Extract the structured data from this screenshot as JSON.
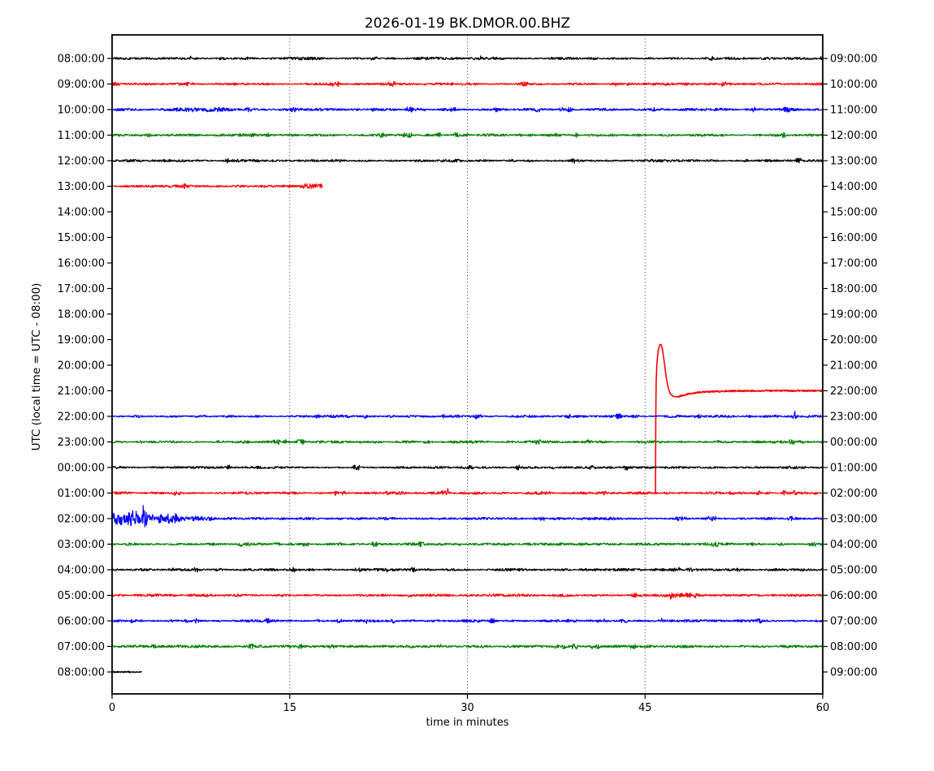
{
  "chart_data": {
    "type": "line",
    "subtype": "helicorder-dayplot",
    "title": "2026-01-19 BK.DMOR.00.BHZ",
    "xlabel": "time in minutes",
    "ylabel": "UTC (local time = UTC - 08:00)",
    "x_range": [
      0,
      60
    ],
    "x_ticks": [
      0,
      15,
      30,
      45,
      60
    ],
    "gridline_minutes": [
      15,
      30,
      45
    ],
    "minutes_per_line": 60,
    "grid": "vertical-dotted",
    "colors": {
      "black": "#000000",
      "red": "#ff0000",
      "blue": "#0000ff",
      "green": "#008000",
      "frame": "#000000",
      "gridline": "#555555"
    },
    "rows": [
      {
        "utc_left": "08:00:00",
        "local_right": "09:00:00",
        "color": "black",
        "segments": [
          {
            "start": 0,
            "end": 60
          }
        ]
      },
      {
        "utc_left": "09:00:00",
        "local_right": "10:00:00",
        "color": "red",
        "segments": [
          {
            "start": 0,
            "end": 60
          }
        ]
      },
      {
        "utc_left": "10:00:00",
        "local_right": "11:00:00",
        "color": "blue",
        "segments": [
          {
            "start": 0,
            "end": 60,
            "bursts": [
              {
                "start": 5,
                "end": 10,
                "amp": 0.9
              }
            ]
          }
        ]
      },
      {
        "utc_left": "11:00:00",
        "local_right": "12:00:00",
        "color": "green",
        "segments": [
          {
            "start": 0,
            "end": 60
          }
        ]
      },
      {
        "utc_left": "12:00:00",
        "local_right": "13:00:00",
        "color": "black",
        "segments": [
          {
            "start": 0,
            "end": 60
          }
        ]
      },
      {
        "utc_left": "13:00:00",
        "local_right": "14:00:00",
        "color": "red",
        "segments": [
          {
            "start": 0,
            "end": 17.8,
            "bursts": [
              {
                "start": 16.2,
                "end": 17.7,
                "amp": 1.4
              }
            ]
          }
        ]
      },
      {
        "utc_left": "14:00:00",
        "local_right": "15:00:00",
        "color": "blue",
        "segments": []
      },
      {
        "utc_left": "15:00:00",
        "local_right": "16:00:00",
        "color": "green",
        "segments": []
      },
      {
        "utc_left": "16:00:00",
        "local_right": "17:00:00",
        "color": "black",
        "segments": []
      },
      {
        "utc_left": "17:00:00",
        "local_right": "18:00:00",
        "color": "red",
        "segments": []
      },
      {
        "utc_left": "18:00:00",
        "local_right": "19:00:00",
        "color": "blue",
        "segments": []
      },
      {
        "utc_left": "19:00:00",
        "local_right": "20:00:00",
        "color": "green",
        "segments": []
      },
      {
        "utc_left": "20:00:00",
        "local_right": "21:00:00",
        "color": "black",
        "segments": []
      },
      {
        "utc_left": "21:00:00",
        "local_right": "22:00:00",
        "color": "red",
        "segments": [],
        "transient": {
          "description": "trace resumes ~45.9 min with large step transient: first sample ~4 lines low, peak ~+1.8 lines, undershoot, settles to baseline by ~51 min",
          "start_min": 45.88,
          "end_min": 60,
          "points_min_amplines": [
            [
              45.88,
              -4.0
            ],
            [
              45.9,
              -1.2
            ],
            [
              45.93,
              0.35
            ],
            [
              46.0,
              1.05
            ],
            [
              46.1,
              1.55
            ],
            [
              46.22,
              1.78
            ],
            [
              46.35,
              1.82
            ],
            [
              46.48,
              1.6
            ],
            [
              46.62,
              1.12
            ],
            [
              46.78,
              0.55
            ],
            [
              46.95,
              0.12
            ],
            [
              47.12,
              -0.12
            ],
            [
              47.35,
              -0.21
            ],
            [
              47.65,
              -0.24
            ],
            [
              47.95,
              -0.21
            ],
            [
              48.35,
              -0.16
            ],
            [
              48.9,
              -0.1
            ],
            [
              49.6,
              -0.06
            ],
            [
              50.5,
              -0.03
            ],
            [
              52.0,
              -0.012
            ],
            [
              54.0,
              0.0
            ],
            [
              60.0,
              0.0
            ]
          ]
        }
      },
      {
        "utc_left": "22:00:00",
        "local_right": "23:00:00",
        "color": "blue",
        "segments": [
          {
            "start": 0,
            "end": 60
          }
        ]
      },
      {
        "utc_left": "23:00:00",
        "local_right": "00:00:00",
        "color": "green",
        "segments": [
          {
            "start": 0,
            "end": 60
          }
        ]
      },
      {
        "utc_left": "00:00:00",
        "local_right": "01:00:00",
        "color": "black",
        "segments": [
          {
            "start": 0,
            "end": 60
          }
        ]
      },
      {
        "utc_left": "01:00:00",
        "local_right": "02:00:00",
        "color": "red",
        "segments": [
          {
            "start": 0,
            "end": 60
          }
        ]
      },
      {
        "utc_left": "02:00:00",
        "local_right": "03:00:00",
        "color": "blue",
        "segments": [
          {
            "start": 0,
            "end": 60,
            "bursts": [
              {
                "start": 0,
                "end": 2.8,
                "amp": 6.5
              },
              {
                "start": 2.8,
                "end": 5.5,
                "amp": 3.6
              },
              {
                "start": 5.5,
                "end": 8.5,
                "amp": 1.6
              }
            ]
          }
        ]
      },
      {
        "utc_left": "03:00:00",
        "local_right": "04:00:00",
        "color": "green",
        "segments": [
          {
            "start": 0,
            "end": 60
          }
        ]
      },
      {
        "utc_left": "04:00:00",
        "local_right": "05:00:00",
        "color": "black",
        "segments": [
          {
            "start": 0,
            "end": 60
          }
        ]
      },
      {
        "utc_left": "05:00:00",
        "local_right": "06:00:00",
        "color": "red",
        "segments": [
          {
            "start": 0,
            "end": 60,
            "bursts": [
              {
                "start": 47.1,
                "end": 49.3,
                "amp": 1.3
              }
            ]
          }
        ]
      },
      {
        "utc_left": "06:00:00",
        "local_right": "07:00:00",
        "color": "blue",
        "segments": [
          {
            "start": 0,
            "end": 60
          }
        ]
      },
      {
        "utc_left": "07:00:00",
        "local_right": "08:00:00",
        "color": "green",
        "segments": [
          {
            "start": 0,
            "end": 60
          }
        ]
      },
      {
        "utc_left": "08:00:00",
        "local_right": "09:00:00",
        "color": "black",
        "segments": [
          {
            "start": 0,
            "end": 2.5
          }
        ]
      }
    ]
  }
}
